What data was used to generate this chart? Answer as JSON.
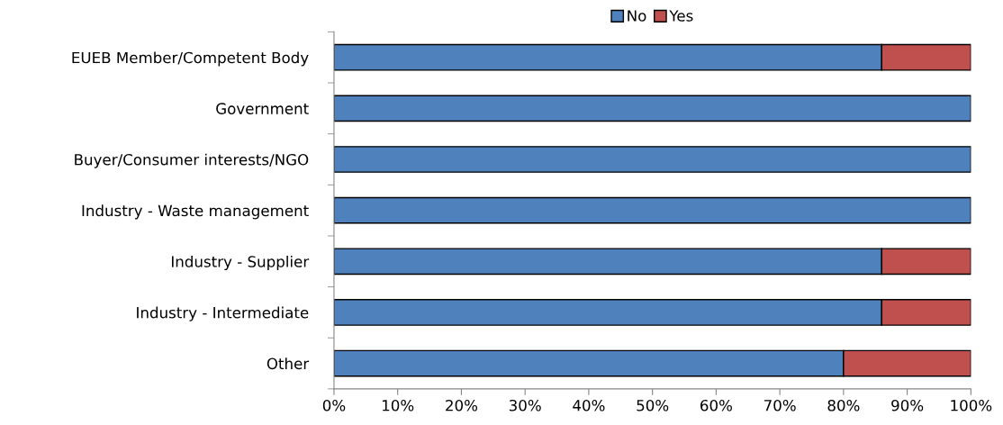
{
  "chart_data": {
    "type": "bar",
    "orientation": "horizontal",
    "stacked": true,
    "categories": [
      "EUEB Member/Competent Body",
      "Government",
      "Buyer/Consumer interests/NGO",
      "Industry - Waste management",
      "Industry - Supplier",
      "Industry - Intermediate",
      "Other"
    ],
    "series": [
      {
        "name": "No",
        "color": "#4f81bd",
        "values": [
          86,
          100,
          100,
          100,
          86,
          86,
          80
        ]
      },
      {
        "name": "Yes",
        "color": "#c0504d",
        "values": [
          14,
          null,
          null,
          null,
          14,
          14,
          20
        ]
      }
    ],
    "xlim": [
      0,
      100
    ],
    "xticks": [
      {
        "value": 0,
        "label": "0%"
      },
      {
        "value": 10,
        "label": "10%"
      },
      {
        "value": 20,
        "label": "20%"
      },
      {
        "value": 30,
        "label": "30%"
      },
      {
        "value": 40,
        "label": "40%"
      },
      {
        "value": 50,
        "label": "50%"
      },
      {
        "value": 60,
        "label": "60%"
      },
      {
        "value": 70,
        "label": "70%"
      },
      {
        "value": 80,
        "label": "80%"
      },
      {
        "value": 90,
        "label": "90%"
      },
      {
        "value": 100,
        "label": "100%"
      }
    ],
    "legend": "top",
    "grid": false
  }
}
